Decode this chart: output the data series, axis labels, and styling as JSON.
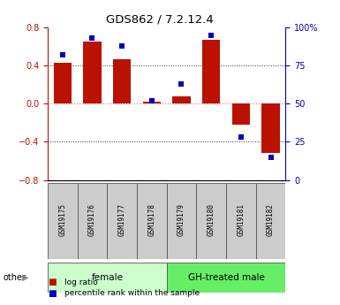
{
  "title": "GDS862 / 7.2.12.4",
  "samples": [
    "GSM19175",
    "GSM19176",
    "GSM19177",
    "GSM19178",
    "GSM19179",
    "GSM19180",
    "GSM19181",
    "GSM19182"
  ],
  "log_ratio": [
    0.43,
    0.65,
    0.47,
    0.02,
    0.08,
    0.67,
    -0.22,
    -0.52
  ],
  "percentile_rank": [
    82,
    93,
    88,
    52,
    63,
    95,
    28,
    15
  ],
  "groups": [
    {
      "label": "female",
      "indices": [
        0,
        1,
        2,
        3
      ],
      "color_light": "#ccffcc",
      "color_dark": "#66dd66"
    },
    {
      "label": "GH-treated male",
      "indices": [
        4,
        5,
        6,
        7
      ],
      "color_light": "#66dd66",
      "color_dark": "#44bb44"
    }
  ],
  "ylim": [
    -0.8,
    0.8
  ],
  "yticks_left": [
    -0.8,
    -0.4,
    0.0,
    0.4,
    0.8
  ],
  "yticks_right": [
    0,
    25,
    50,
    75,
    100
  ],
  "bar_color": "#bb1100",
  "dot_color": "#0000bb",
  "zero_line_color": "#ff6666",
  "grid_color": "#333333",
  "legend_items": [
    "log ratio",
    "percentile rank within the sample"
  ],
  "other_label": "other",
  "fig_width": 3.85,
  "fig_height": 3.45
}
